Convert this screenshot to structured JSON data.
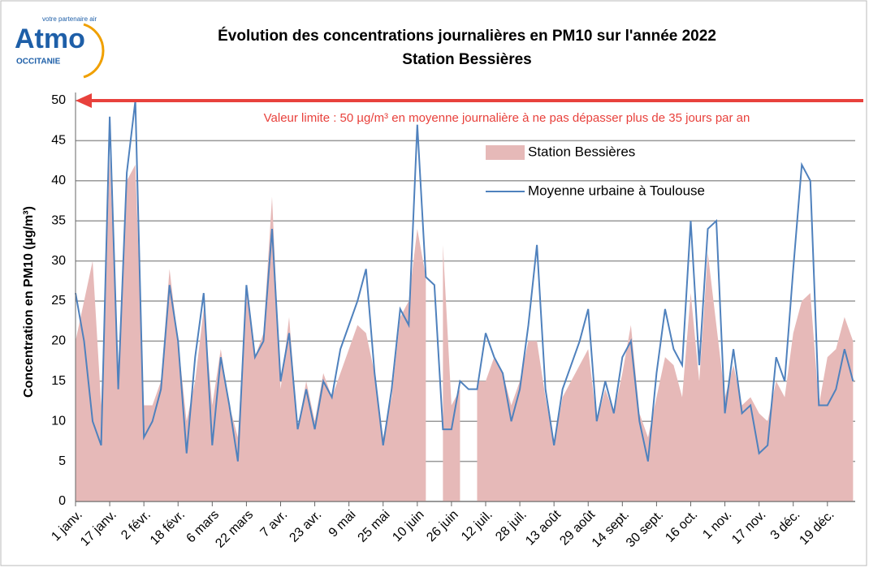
{
  "chart_data": {
    "type": "area_line",
    "logo": {
      "name": "Atmo",
      "tagline": "votre partenaire air",
      "region": "OCCITANIE"
    },
    "title": "Évolution des concentrations journalières en PM10 sur l'année 2022",
    "subtitle": "Station Bessières",
    "ylabel": "Concentration en PM10  (µg/m³)",
    "threshold": 50,
    "annotation": "Valeur limite  : 50 µg/m³ en moyenne journalière à ne pas dépasser plus de 35 jours par an",
    "threshold_color": "#e8413c",
    "x": [
      0,
      4,
      8,
      12,
      16,
      20,
      24,
      28,
      32,
      36,
      40,
      44,
      48,
      52,
      56,
      60,
      64,
      68,
      72,
      76,
      80,
      84,
      88,
      92,
      96,
      100,
      104,
      108,
      112,
      116,
      120,
      124,
      128,
      132,
      136,
      140,
      144,
      148,
      152,
      156,
      160,
      164,
      168,
      172,
      176,
      180,
      184,
      188,
      192,
      196,
      200,
      204,
      208,
      212,
      216,
      220,
      224,
      228,
      232,
      236,
      240,
      244,
      248,
      252,
      256,
      260,
      264,
      268,
      272,
      276,
      280,
      284,
      288,
      292,
      296,
      300,
      304,
      308,
      312,
      316,
      320,
      324,
      328,
      332,
      336,
      340,
      344,
      348,
      352,
      356,
      360,
      364
    ],
    "series": [
      {
        "name": "Station Bessières",
        "kind": "area",
        "color": "#e6b9b8",
        "values": [
          20,
          25,
          30,
          12,
          43,
          17,
          40,
          42,
          12,
          12,
          15,
          29,
          20,
          10,
          15,
          24,
          12,
          19,
          12,
          8,
          27,
          18,
          21,
          38,
          14,
          23,
          9,
          15,
          10,
          16,
          13,
          16,
          19,
          22,
          21,
          16,
          8,
          13,
          23,
          25,
          34,
          28,
          null,
          32,
          12,
          14,
          null,
          15,
          15,
          18,
          16,
          12,
          15,
          20,
          20,
          13,
          7,
          13,
          15,
          17,
          19,
          10,
          14,
          11,
          16,
          22,
          11,
          8,
          13,
          18,
          17,
          13,
          26,
          15,
          31,
          22,
          13,
          17,
          12,
          13,
          11,
          10,
          15,
          13,
          21,
          25,
          26,
          12,
          18,
          19,
          23,
          20
        ]
      },
      {
        "name": "Moyenne urbaine à Toulouse",
        "kind": "line",
        "color": "#4f81bd",
        "values": [
          26,
          20,
          10,
          7,
          48,
          14,
          41,
          50,
          8,
          10,
          14,
          27,
          20,
          6,
          18,
          26,
          7,
          18,
          12,
          5,
          27,
          18,
          20,
          34,
          15,
          21,
          9,
          14,
          9,
          15,
          13,
          19,
          22,
          25,
          29,
          16,
          7,
          14,
          24,
          22,
          47,
          28,
          27,
          9,
          9,
          15,
          14,
          14,
          21,
          18,
          16,
          10,
          14,
          22,
          32,
          14,
          7,
          14,
          17,
          20,
          24,
          10,
          15,
          11,
          18,
          20,
          10,
          5,
          16,
          24,
          19,
          17,
          35,
          17,
          34,
          35,
          11,
          19,
          11,
          12,
          6,
          7,
          18,
          15,
          29,
          42,
          40,
          12,
          12,
          14,
          19,
          15
        ]
      }
    ],
    "xlim": [
      0,
      365
    ],
    "xticks": [
      {
        "value": 0,
        "label": "1 janv."
      },
      {
        "value": 16,
        "label": "17 janv."
      },
      {
        "value": 32,
        "label": "2 févr."
      },
      {
        "value": 48,
        "label": "18 févr."
      },
      {
        "value": 64,
        "label": "6 mars"
      },
      {
        "value": 80,
        "label": "22 mars"
      },
      {
        "value": 96,
        "label": "7 avr."
      },
      {
        "value": 112,
        "label": "23 avr."
      },
      {
        "value": 128,
        "label": "9 mai"
      },
      {
        "value": 144,
        "label": "25 mai"
      },
      {
        "value": 160,
        "label": "10 juin"
      },
      {
        "value": 176,
        "label": "26 juin"
      },
      {
        "value": 192,
        "label": "12 juil."
      },
      {
        "value": 208,
        "label": "28 juil."
      },
      {
        "value": 224,
        "label": "13 août"
      },
      {
        "value": 240,
        "label": "29 août"
      },
      {
        "value": 256,
        "label": "14 sept."
      },
      {
        "value": 272,
        "label": "30 sept."
      },
      {
        "value": 288,
        "label": "16 oct."
      },
      {
        "value": 304,
        "label": "1 nov."
      },
      {
        "value": 320,
        "label": "17 nov."
      },
      {
        "value": 336,
        "label": "3 déc."
      },
      {
        "value": 352,
        "label": "19 déc."
      }
    ],
    "ylim": [
      0,
      50
    ],
    "yticks": [
      0,
      5,
      10,
      15,
      20,
      25,
      30,
      35,
      40,
      45,
      50
    ],
    "grid": true
  }
}
